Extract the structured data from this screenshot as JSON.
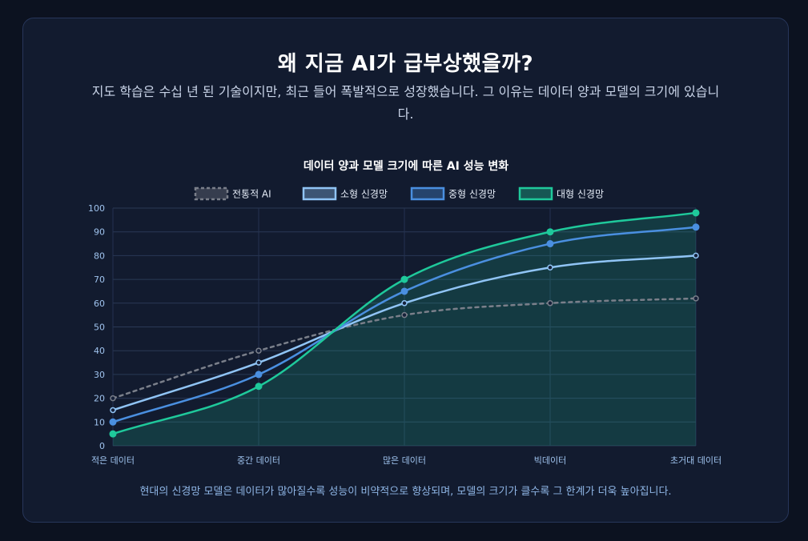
{
  "page": {
    "title": "왜 지금 AI가 급부상했을까?",
    "subtitle": "지도 학습은 수십 년 된 기술이지만, 최근 들어 폭발적으로 성장했습니다. 그 이유는 데이터 양과 모델의 크기에 있습니다.",
    "caption": "현대의 신경망 모델은 데이터가 많아질수록 성능이 비약적으로 향상되며, 모델의 크기가 클수록 그 한계가 더욱 높아집니다."
  },
  "chart_data": {
    "type": "line",
    "title": "데이터 양과 모델 크기에 따른 AI 성능 변화",
    "xlabel": "",
    "ylabel": "",
    "categories": [
      "적은 데이터",
      "중간 데이터",
      "많은 데이터",
      "빅데이터",
      "초거대 데이터"
    ],
    "ylim": [
      0,
      100
    ],
    "yticks": [
      0,
      10,
      20,
      30,
      40,
      50,
      60,
      70,
      80,
      90,
      100
    ],
    "grid": true,
    "legend_position": "top-center",
    "series": [
      {
        "name": "전통적 AI",
        "values": [
          20,
          40,
          55,
          60,
          62
        ],
        "color": "#7a7f8a",
        "style": "dashed",
        "fill": false
      },
      {
        "name": "소형 신경망",
        "values": [
          15,
          35,
          60,
          75,
          80
        ],
        "color": "#90c4f5",
        "style": "solid",
        "fill": false
      },
      {
        "name": "중형 신경망",
        "values": [
          10,
          30,
          65,
          85,
          92
        ],
        "color": "#4a8fe0",
        "style": "solid",
        "fill": false
      },
      {
        "name": "대형 신경망",
        "values": [
          5,
          25,
          70,
          90,
          98
        ],
        "color": "#1fc99b",
        "style": "solid",
        "fill": true
      }
    ]
  }
}
